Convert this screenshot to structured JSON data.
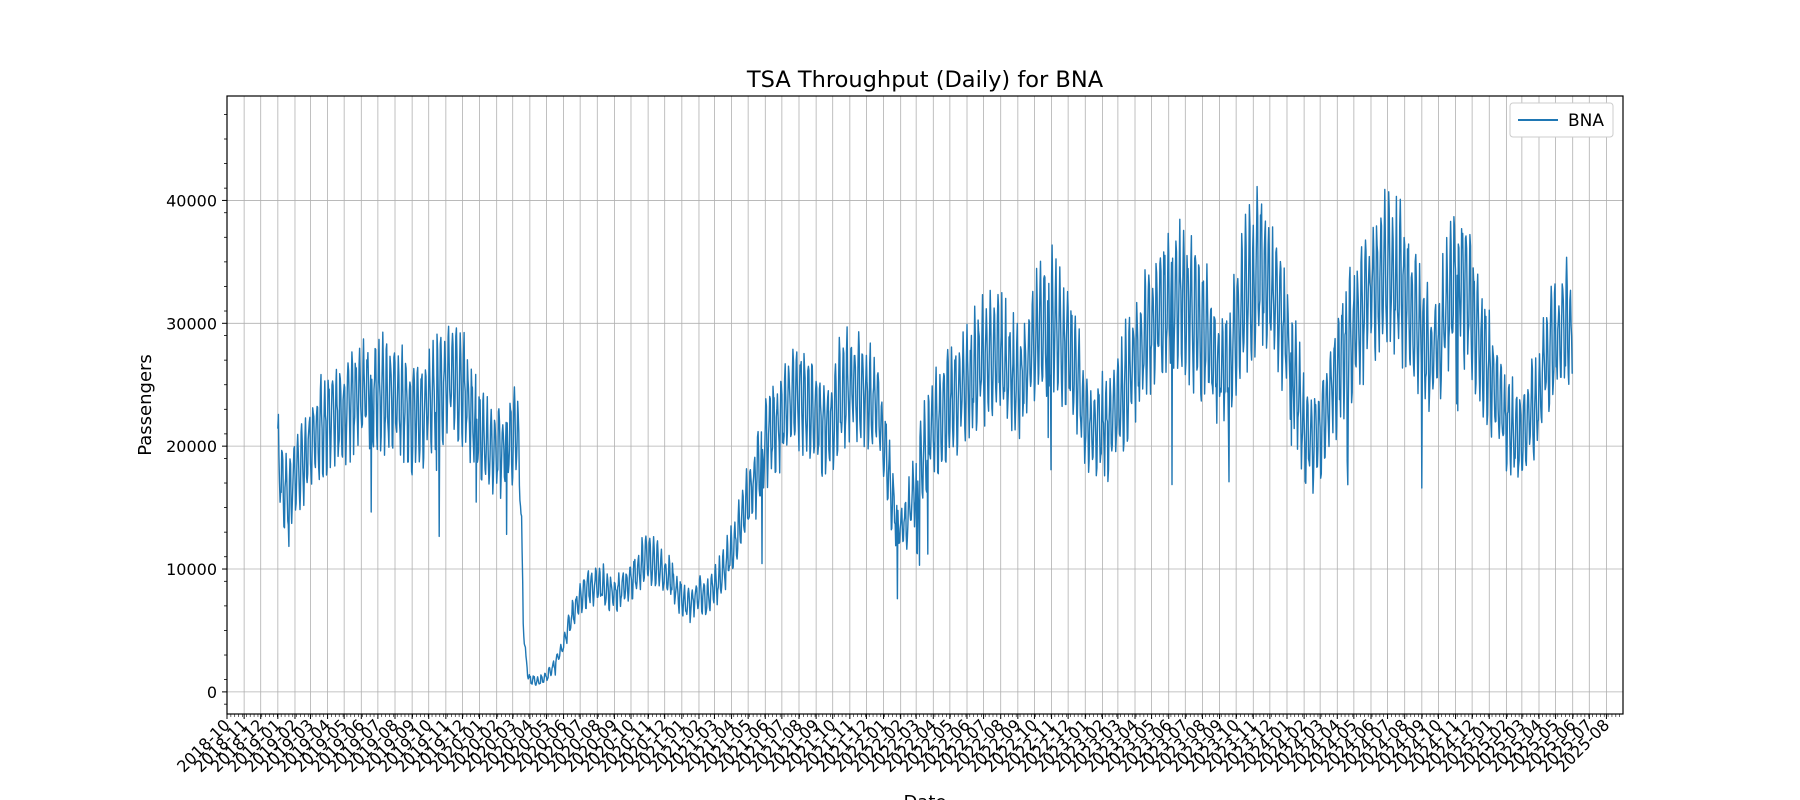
{
  "chart_data": {
    "type": "line",
    "title": "TSA Throughput (Daily) for BNA",
    "xlabel": "Date",
    "ylabel": "Passengers",
    "x_type": "date",
    "xlim": [
      "2018-10-01",
      "2025-08-31"
    ],
    "ylim": [
      -1800,
      48500
    ],
    "y_ticks": [
      0,
      10000,
      20000,
      30000,
      40000
    ],
    "y_tick_labels": [
      "0",
      "10000",
      "20000",
      "30000",
      "40000"
    ],
    "x_tick_labels": [
      "2018-10",
      "2018-11",
      "2018-12",
      "2019-01",
      "2019-02",
      "2019-03",
      "2019-04",
      "2019-05",
      "2019-06",
      "2019-07",
      "2019-08",
      "2019-09",
      "2019-10",
      "2019-11",
      "2019-12",
      "2020-01",
      "2020-02",
      "2020-03",
      "2020-04",
      "2020-05",
      "2020-06",
      "2020-07",
      "2020-08",
      "2020-09",
      "2020-10",
      "2020-11",
      "2020-12",
      "2021-01",
      "2021-02",
      "2021-03",
      "2021-04",
      "2021-05",
      "2021-06",
      "2021-07",
      "2021-08",
      "2021-09",
      "2021-10",
      "2021-11",
      "2021-12",
      "2022-01",
      "2022-02",
      "2022-03",
      "2022-04",
      "2022-05",
      "2022-06",
      "2022-07",
      "2022-08",
      "2022-09",
      "2022-10",
      "2022-11",
      "2022-12",
      "2023-01",
      "2023-02",
      "2023-03",
      "2023-04",
      "2023-05",
      "2023-06",
      "2023-07",
      "2023-08",
      "2023-09",
      "2023-10",
      "2023-11",
      "2023-12",
      "2024-01",
      "2024-02",
      "2024-03",
      "2024-04",
      "2024-05",
      "2024-06",
      "2024-07",
      "2024-08",
      "2024-09",
      "2024-10",
      "2024-11",
      "2024-12",
      "2025-01",
      "2025-02",
      "2025-03",
      "2025-04",
      "2025-05",
      "2025-06",
      "2025-07",
      "2025-08"
    ],
    "grid": true,
    "legend_position": "top-right",
    "series": [
      {
        "name": "BNA",
        "color": "#1f77b4",
        "x": [
          "2019-01-01",
          "2019-01-15",
          "2019-02-01",
          "2019-02-15",
          "2019-03-01",
          "2019-03-15",
          "2019-04-01",
          "2019-04-15",
          "2019-05-01",
          "2019-05-15",
          "2019-06-01",
          "2019-06-15",
          "2019-07-01",
          "2019-07-15",
          "2019-08-01",
          "2019-08-15",
          "2019-09-01",
          "2019-09-15",
          "2019-10-01",
          "2019-10-15",
          "2019-11-01",
          "2019-11-15",
          "2019-12-01",
          "2019-12-15",
          "2020-01-01",
          "2020-01-15",
          "2020-02-01",
          "2020-02-15",
          "2020-03-01",
          "2020-03-10",
          "2020-03-15",
          "2020-03-20",
          "2020-03-25",
          "2020-04-01",
          "2020-04-15",
          "2020-05-01",
          "2020-05-15",
          "2020-06-01",
          "2020-06-15",
          "2020-07-01",
          "2020-07-15",
          "2020-08-01",
          "2020-08-15",
          "2020-09-01",
          "2020-09-15",
          "2020-10-01",
          "2020-10-15",
          "2020-11-01",
          "2020-11-15",
          "2020-12-01",
          "2020-12-15",
          "2021-01-01",
          "2021-01-15",
          "2021-02-01",
          "2021-02-15",
          "2021-03-01",
          "2021-03-15",
          "2021-04-01",
          "2021-04-15",
          "2021-05-01",
          "2021-05-15",
          "2021-06-01",
          "2021-06-15",
          "2021-07-01",
          "2021-07-15",
          "2021-08-01",
          "2021-08-15",
          "2021-09-01",
          "2021-09-15",
          "2021-10-01",
          "2021-10-15",
          "2021-11-01",
          "2021-11-15",
          "2021-12-01",
          "2021-12-15",
          "2022-01-01",
          "2022-01-15",
          "2022-02-01",
          "2022-02-15",
          "2022-03-01",
          "2022-03-15",
          "2022-04-01",
          "2022-04-15",
          "2022-05-01",
          "2022-05-15",
          "2022-06-01",
          "2022-06-15",
          "2022-07-01",
          "2022-07-15",
          "2022-08-01",
          "2022-08-15",
          "2022-09-01",
          "2022-09-15",
          "2022-10-01",
          "2022-10-15",
          "2022-11-01",
          "2022-11-15",
          "2022-12-01",
          "2022-12-15",
          "2023-01-01",
          "2023-01-15",
          "2023-02-01",
          "2023-02-15",
          "2023-03-01",
          "2023-03-15",
          "2023-04-01",
          "2023-04-15",
          "2023-05-01",
          "2023-05-15",
          "2023-06-01",
          "2023-06-15",
          "2023-07-01",
          "2023-07-15",
          "2023-08-01",
          "2023-08-15",
          "2023-09-01",
          "2023-09-15",
          "2023-10-01",
          "2023-10-15",
          "2023-11-01",
          "2023-11-15",
          "2023-12-01",
          "2023-12-15",
          "2024-01-01",
          "2024-01-15",
          "2024-02-01",
          "2024-02-15",
          "2024-03-01",
          "2024-03-15",
          "2024-04-01",
          "2024-04-15",
          "2024-05-01",
          "2024-05-15",
          "2024-06-01",
          "2024-06-15",
          "2024-07-01",
          "2024-07-15",
          "2024-08-01",
          "2024-08-15",
          "2024-09-01",
          "2024-09-15",
          "2024-10-01",
          "2024-10-15",
          "2024-11-01",
          "2024-11-15",
          "2024-12-01",
          "2024-12-15",
          "2025-01-01",
          "2025-01-15",
          "2025-02-01",
          "2025-02-15",
          "2025-03-01",
          "2025-03-15",
          "2025-04-01",
          "2025-04-15",
          "2025-05-01",
          "2025-05-15",
          "2025-05-31"
        ],
        "y": [
          19000,
          16000,
          17500,
          18500,
          20500,
          21500,
          22000,
          22500,
          23000,
          23500,
          24000,
          24500,
          24500,
          24000,
          23500,
          23500,
          22000,
          22500,
          23500,
          24500,
          25000,
          26000,
          24500,
          23000,
          21000,
          20000,
          19500,
          20000,
          21000,
          20500,
          17000,
          6000,
          2500,
          900,
          800,
          1200,
          2200,
          3800,
          6000,
          7500,
          8500,
          8800,
          8500,
          8000,
          8500,
          9000,
          10000,
          11000,
          10500,
          9500,
          9000,
          7500,
          7000,
          8000,
          7500,
          8500,
          9500,
          11500,
          13000,
          15500,
          17500,
          20000,
          21500,
          22500,
          23500,
          24000,
          23500,
          22500,
          21500,
          22500,
          24000,
          25000,
          24500,
          24000,
          23500,
          21000,
          16000,
          13000,
          14500,
          17000,
          19500,
          21500,
          22500,
          23500,
          24000,
          25000,
          26000,
          27000,
          27500,
          27000,
          26000,
          25000,
          26000,
          28000,
          29500,
          30000,
          29000,
          27500,
          26000,
          22500,
          21000,
          21500,
          21500,
          23000,
          25000,
          27000,
          28500,
          30000,
          31000,
          31500,
          32000,
          31500,
          30500,
          29500,
          28000,
          26500,
          26500,
          28500,
          32000,
          33500,
          34500,
          33000,
          30500,
          28500,
          25500,
          21500,
          20000,
          21500,
          24000,
          26000,
          28000,
          29500,
          31000,
          32500,
          33500,
          34500,
          33500,
          32500,
          31000,
          29000,
          27000,
          28000,
          31000,
          34000,
          33000,
          31000,
          28500,
          26000,
          24000,
          22000,
          21000,
          20500,
          22500,
          24500,
          27000,
          28500,
          29500,
          29000
        ]
      }
    ]
  }
}
